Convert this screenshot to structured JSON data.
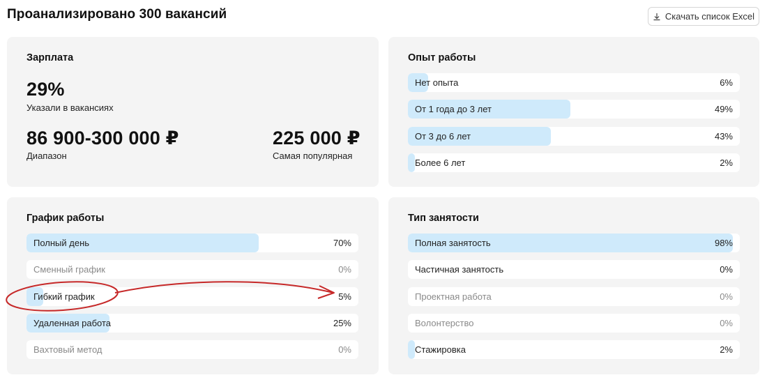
{
  "header": {
    "title": "Проанализировано 300 вакансий",
    "download_label": "Скачать список Excel"
  },
  "salary": {
    "title": "Зарплата",
    "percent": "29%",
    "percent_caption": "Указали в вакансиях",
    "range": "86 900-300 000 ₽",
    "range_caption": "Диапазон",
    "popular": "225 000 ₽",
    "popular_caption": "Самая популярная"
  },
  "experience": {
    "title": "Опыт работы",
    "items": [
      {
        "label": "Нет опыта",
        "value": "6%",
        "fraction": 0.06
      },
      {
        "label": "От 1 года до 3 лет",
        "value": "49%",
        "fraction": 0.49
      },
      {
        "label": "От 3 до 6 лет",
        "value": "43%",
        "fraction": 0.43
      },
      {
        "label": "Более 6 лет",
        "value": "2%",
        "fraction": 0.02
      }
    ]
  },
  "schedule": {
    "title": "График работы",
    "items": [
      {
        "label": "Полный день",
        "value": "70%",
        "fraction": 0.7
      },
      {
        "label": "Сменный график",
        "value": "0%",
        "fraction": 0
      },
      {
        "label": "Гибкий график",
        "value": "5%",
        "fraction": 0.05
      },
      {
        "label": "Удаленная работа",
        "value": "25%",
        "fraction": 0.25
      },
      {
        "label": "Вахтовый метод",
        "value": "0%",
        "fraction": 0
      }
    ]
  },
  "employment": {
    "title": "Тип занятости",
    "items": [
      {
        "label": "Полная занятость",
        "value": "98%",
        "fraction": 0.98
      },
      {
        "label": "Частичная занятость",
        "value": "0%",
        "fraction": 0,
        "muted": false
      },
      {
        "label": "Проектная работа",
        "value": "0%",
        "fraction": 0
      },
      {
        "label": "Волонтерство",
        "value": "0%",
        "fraction": 0
      },
      {
        "label": "Стажировка",
        "value": "2%",
        "fraction": 0.02
      }
    ]
  },
  "icons": {
    "download": "download-icon"
  },
  "colors": {
    "card_bg": "#f4f4f4",
    "bar_fill": "#cfeafb",
    "annotation": "#c62828"
  }
}
